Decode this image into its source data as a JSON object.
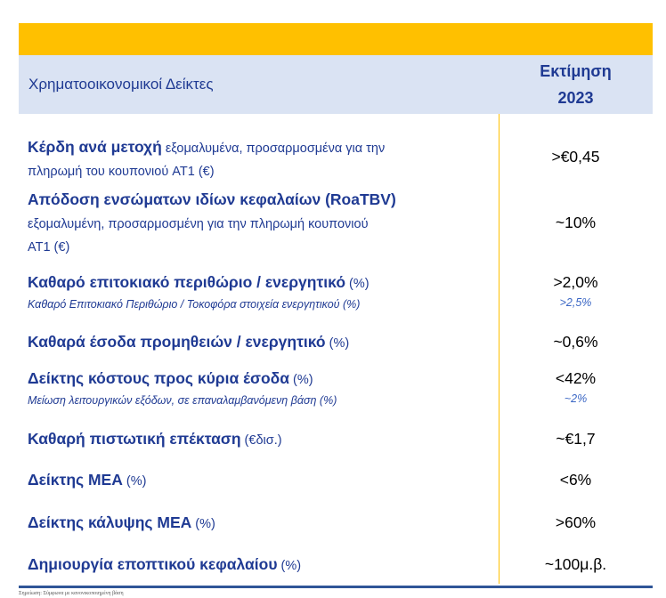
{
  "header": {
    "label": "Χρηματοοικονομικοί Δείκτες",
    "value_line1": "Εκτίμηση",
    "value_line2": "2023"
  },
  "rows": [
    {
      "title": "Κέρδη ανά μετοχή",
      "desc_inline": " εξομαλυμένα, προσαρμοσμένα για την",
      "desc_line2": "πληρωμή του κουπονιού AT1 (€)",
      "value": ">€0,45"
    },
    {
      "title": "Απόδοση ενσώματων ιδίων κεφαλαίων (RoaTBV)",
      "desc_line1": "εξομαλυμένη, προσαρμοσμένη για την πληρωμή κουπονιού",
      "desc_line2": "AT1 (€)",
      "value": "~10%"
    },
    {
      "title": "Καθαρό επιτοκιακό περιθώριο / ενεργητικό",
      "unit": " (%)",
      "sub": "Καθαρό Επιτοκιακό Περιθώριο / Τοκοφόρα στοιχεία ενεργητικού (%)",
      "value": ">2,0%",
      "subvalue": ">2,5%"
    },
    {
      "title": "Καθαρά έσοδα προμηθειών / ενεργητικό",
      "unit": " (%)",
      "value": "~0,6%"
    },
    {
      "title": "Δείκτης κόστους προς κύρια έσοδα",
      "unit": " (%)",
      "sub": "Μείωση λειτουργικών εξόδων, σε επαναλαμβανόμενη βάση (%)",
      "value": "<42%",
      "subvalue": "~2%"
    },
    {
      "title": "Καθαρή πιστωτική επέκταση",
      "unit": " (€δισ.)",
      "value": "~€1,7"
    },
    {
      "title": "Δείκτης ΜΕΑ",
      "unit": " (%)",
      "value": "<6%"
    },
    {
      "title": "Δείκτης κάλυψης ΜΕΑ",
      "unit": " (%)",
      "value": ">60%"
    },
    {
      "title": "Δημιουργία εποπτικού κεφαλαίου",
      "unit": " (%)",
      "value": "~100μ.β."
    }
  ],
  "footnote": "Σημείωση: Σύμφωνα με κανονικοποιημένη βάση"
}
